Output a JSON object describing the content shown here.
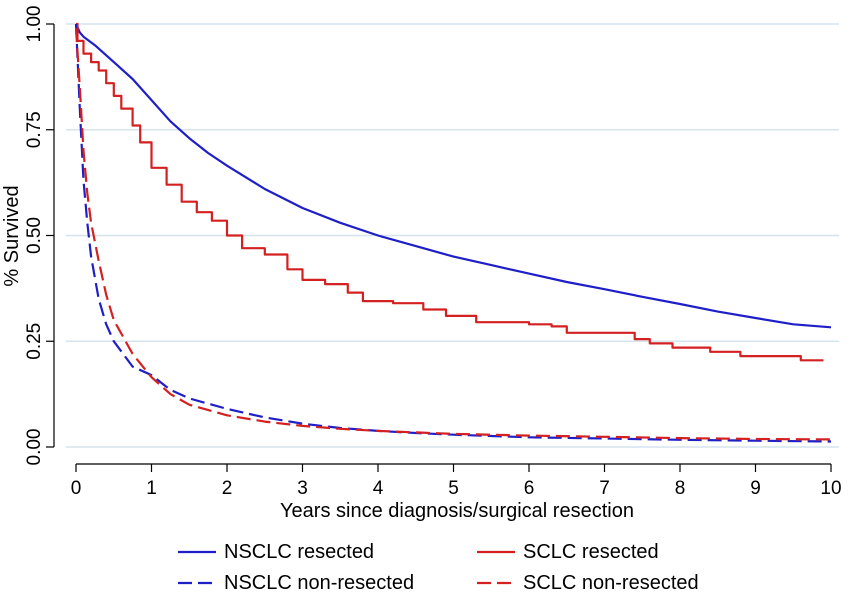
{
  "chart_data": {
    "type": "line",
    "title": "",
    "xlabel": "Years since diagnosis/surgical resection",
    "ylabel": "% Survived",
    "xlim": [
      0,
      10
    ],
    "ylim": [
      0,
      1
    ],
    "x_ticks": [
      0,
      1,
      2,
      3,
      4,
      5,
      6,
      7,
      8,
      9,
      10
    ],
    "x_tick_labels": [
      "0",
      "1",
      "2",
      "3",
      "4",
      "5",
      "6",
      "7",
      "8",
      "9",
      "10"
    ],
    "y_ticks": [
      0,
      0.25,
      0.5,
      0.75,
      1
    ],
    "y_tick_labels": [
      "0.00",
      "0.25",
      "0.50",
      "0.75",
      "1.00"
    ],
    "grid": "horizontal",
    "legend_position": "bottom",
    "series": [
      {
        "name": "NSCLC resected",
        "color": "#1f1fc8",
        "dash": "solid",
        "step": false,
        "points": [
          [
            0,
            1.0
          ],
          [
            0.05,
            0.98
          ],
          [
            0.1,
            0.97
          ],
          [
            0.25,
            0.95
          ],
          [
            0.5,
            0.91
          ],
          [
            0.75,
            0.87
          ],
          [
            1.0,
            0.82
          ],
          [
            1.25,
            0.77
          ],
          [
            1.5,
            0.73
          ],
          [
            1.75,
            0.695
          ],
          [
            2.0,
            0.665
          ],
          [
            2.5,
            0.61
          ],
          [
            3.0,
            0.565
          ],
          [
            3.5,
            0.53
          ],
          [
            4.0,
            0.5
          ],
          [
            4.5,
            0.475
          ],
          [
            5.0,
            0.45
          ],
          [
            5.5,
            0.43
          ],
          [
            6.0,
            0.41
          ],
          [
            6.5,
            0.39
          ],
          [
            7.0,
            0.373
          ],
          [
            7.5,
            0.355
          ],
          [
            8.0,
            0.338
          ],
          [
            8.5,
            0.32
          ],
          [
            9.0,
            0.305
          ],
          [
            9.5,
            0.29
          ],
          [
            10.0,
            0.283
          ]
        ]
      },
      {
        "name": "SCLC resected",
        "color": "#d42020",
        "dash": "solid",
        "step": true,
        "points": [
          [
            0,
            1.0
          ],
          [
            0.02,
            0.96
          ],
          [
            0.1,
            0.93
          ],
          [
            0.2,
            0.91
          ],
          [
            0.3,
            0.89
          ],
          [
            0.4,
            0.86
          ],
          [
            0.5,
            0.83
          ],
          [
            0.6,
            0.8
          ],
          [
            0.75,
            0.76
          ],
          [
            0.85,
            0.72
          ],
          [
            1.0,
            0.66
          ],
          [
            1.2,
            0.62
          ],
          [
            1.4,
            0.58
          ],
          [
            1.6,
            0.555
          ],
          [
            1.8,
            0.535
          ],
          [
            2.0,
            0.5
          ],
          [
            2.2,
            0.47
          ],
          [
            2.5,
            0.455
          ],
          [
            2.8,
            0.42
          ],
          [
            3.0,
            0.395
          ],
          [
            3.3,
            0.385
          ],
          [
            3.6,
            0.365
          ],
          [
            3.8,
            0.345
          ],
          [
            4.2,
            0.34
          ],
          [
            4.6,
            0.325
          ],
          [
            4.9,
            0.31
          ],
          [
            5.3,
            0.295
          ],
          [
            6.0,
            0.29
          ],
          [
            6.3,
            0.285
          ],
          [
            6.5,
            0.27
          ],
          [
            7.0,
            0.27
          ],
          [
            7.4,
            0.255
          ],
          [
            7.6,
            0.245
          ],
          [
            7.9,
            0.235
          ],
          [
            8.1,
            0.235
          ],
          [
            8.4,
            0.225
          ],
          [
            8.8,
            0.215
          ],
          [
            9.6,
            0.205
          ],
          [
            9.9,
            0.205
          ]
        ]
      },
      {
        "name": "NSCLC non-resected",
        "color": "#1f1fc8",
        "dash": "dashed",
        "step": false,
        "points": [
          [
            0,
            1.0
          ],
          [
            0.05,
            0.8
          ],
          [
            0.1,
            0.63
          ],
          [
            0.15,
            0.53
          ],
          [
            0.2,
            0.45
          ],
          [
            0.3,
            0.35
          ],
          [
            0.4,
            0.29
          ],
          [
            0.5,
            0.25
          ],
          [
            0.75,
            0.19
          ],
          [
            1.0,
            0.17
          ],
          [
            1.25,
            0.135
          ],
          [
            1.5,
            0.115
          ],
          [
            2.0,
            0.09
          ],
          [
            2.5,
            0.07
          ],
          [
            3.0,
            0.055
          ],
          [
            3.5,
            0.045
          ],
          [
            4.0,
            0.038
          ],
          [
            4.5,
            0.033
          ],
          [
            5.0,
            0.029
          ],
          [
            6.0,
            0.023
          ],
          [
            7.0,
            0.02
          ],
          [
            8.0,
            0.017
          ],
          [
            9.0,
            0.015
          ],
          [
            10.0,
            0.013
          ]
        ]
      },
      {
        "name": "SCLC non-resected",
        "color": "#d42020",
        "dash": "dashed",
        "step": false,
        "points": [
          [
            0,
            0.99
          ],
          [
            0.05,
            0.85
          ],
          [
            0.1,
            0.7
          ],
          [
            0.15,
            0.6
          ],
          [
            0.2,
            0.53
          ],
          [
            0.3,
            0.44
          ],
          [
            0.4,
            0.36
          ],
          [
            0.5,
            0.3
          ],
          [
            0.75,
            0.22
          ],
          [
            1.0,
            0.165
          ],
          [
            1.25,
            0.125
          ],
          [
            1.5,
            0.1
          ],
          [
            2.0,
            0.075
          ],
          [
            2.5,
            0.06
          ],
          [
            3.0,
            0.05
          ],
          [
            3.5,
            0.043
          ],
          [
            4.0,
            0.038
          ],
          [
            5.0,
            0.031
          ],
          [
            6.0,
            0.027
          ],
          [
            7.0,
            0.024
          ],
          [
            8.0,
            0.021
          ],
          [
            9.0,
            0.019
          ],
          [
            10.0,
            0.018
          ]
        ]
      }
    ]
  }
}
